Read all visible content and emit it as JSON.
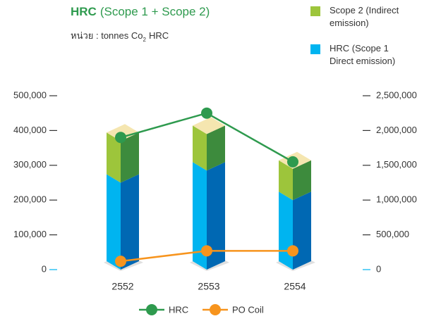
{
  "chart_data": {
    "type": "stacked_bar_3d_with_lines",
    "title_bold": "HRC",
    "title_rest": "(Scope 1 + Scope 2)",
    "unit_label": [
      "หน่วย : tonnes Co",
      "2",
      "HRC"
    ],
    "categories": [
      "2552",
      "2553",
      "2554"
    ],
    "series": [
      {
        "name": "HRC (Scope 1 Direct emission)",
        "color": "#00b4f0",
        "side_color": "#0068b3",
        "values": [
          250000,
          285000,
          200000
        ]
      },
      {
        "name": "Scope 2 (Indirect emission)",
        "color": "#9dc53b",
        "side_color": "#3d8b3d",
        "values": [
          120000,
          105000,
          90000
        ]
      }
    ],
    "line_series": [
      {
        "name": "HRC",
        "color": "#2e9a4e",
        "axis": "y2",
        "values": [
          1900000,
          2250000,
          1550000
        ]
      },
      {
        "name": "PO Coil",
        "color": "#f7941d",
        "axis": "y2",
        "values": [
          120000,
          270000,
          270000
        ]
      }
    ],
    "top_color": "#f5e6b0",
    "ylim": [
      0,
      500000
    ],
    "yticks": [
      0,
      {
        "value": 100000,
        "label": "100,000"
      },
      {
        "value": 200000,
        "label": "200,000"
      },
      {
        "value": 300000,
        "label": "300,000"
      },
      {
        "value": 400000,
        "label": "400,000"
      },
      {
        "value": 500000,
        "label": "500,000"
      }
    ],
    "y2lim": [
      0,
      2500000
    ],
    "y2ticks": [
      0,
      {
        "value": 500000,
        "label": "500,000"
      },
      {
        "value": 1000000,
        "label": "1,000,000"
      },
      {
        "value": 1500000,
        "label": "1,500,000"
      },
      {
        "value": 2000000,
        "label": "2,000,000"
      },
      {
        "value": 2500000,
        "label": "2,500,000"
      }
    ]
  }
}
